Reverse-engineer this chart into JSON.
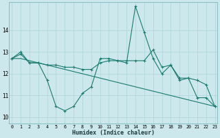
{
  "title": "",
  "xlabel": "Humidex (Indice chaleur)",
  "background_color": "#cce8ec",
  "line_color": "#1a7a6e",
  "grid_color": "#aad4d8",
  "x_ticks": [
    0,
    1,
    2,
    3,
    4,
    5,
    6,
    7,
    8,
    9,
    10,
    11,
    12,
    13,
    14,
    15,
    16,
    17,
    18,
    19,
    20,
    21,
    22,
    23
  ],
  "y_ticks": [
    10,
    11,
    12,
    13,
    14
  ],
  "ylim": [
    9.7,
    15.3
  ],
  "xlim": [
    -0.3,
    23.3
  ],
  "series1_x": [
    0,
    1,
    2,
    3,
    4,
    5,
    6,
    7,
    8,
    9,
    10,
    11,
    12,
    13,
    14,
    15,
    16,
    17,
    18,
    19,
    20,
    21,
    22,
    23
  ],
  "series1_y": [
    12.7,
    13.0,
    12.5,
    12.5,
    11.7,
    10.5,
    10.3,
    10.5,
    11.1,
    11.4,
    12.7,
    12.7,
    12.6,
    12.5,
    15.1,
    13.9,
    12.7,
    12.0,
    12.4,
    11.7,
    11.8,
    10.9,
    10.9,
    10.5
  ],
  "series2_x": [
    0,
    1,
    2,
    3,
    4,
    5,
    6,
    7,
    8,
    9,
    10,
    11,
    12,
    13,
    14,
    15,
    16,
    17,
    18,
    19,
    20,
    21,
    22,
    23
  ],
  "series2_y": [
    12.7,
    12.9,
    12.5,
    12.5,
    12.4,
    12.4,
    12.3,
    12.3,
    12.2,
    12.2,
    12.5,
    12.6,
    12.6,
    12.6,
    12.6,
    12.6,
    13.1,
    12.3,
    12.4,
    11.8,
    11.8,
    11.7,
    11.5,
    10.5
  ],
  "series3_x": [
    0,
    1,
    23
  ],
  "series3_y": [
    12.7,
    12.7,
    10.5
  ]
}
